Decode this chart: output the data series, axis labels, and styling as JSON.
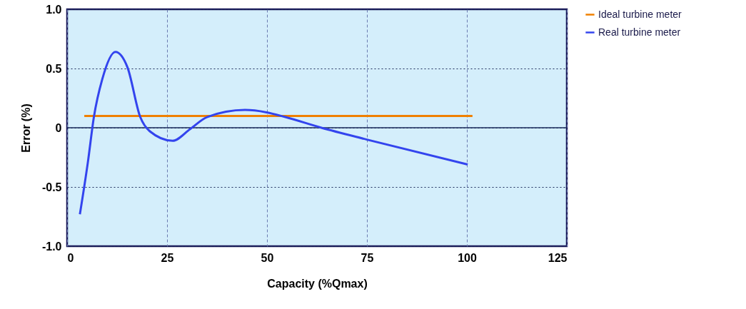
{
  "chart_data": {
    "type": "line",
    "xlabel": "Capacity (%Qmax)",
    "ylabel": "Error (%)",
    "xlim": [
      0,
      125
    ],
    "xticks": [
      0,
      25,
      50,
      75,
      100,
      125
    ],
    "ylim": [
      -1,
      1
    ],
    "yticks": [
      {
        "value": -1,
        "label": "-1.0"
      },
      -0.5,
      0,
      0.5,
      {
        "value": 1,
        "label": "1.0"
      }
    ],
    "grid": true,
    "legend": "right",
    "line_style": "solid",
    "marker": "none",
    "ref_lines": [
      {
        "axis": "y",
        "value": 0,
        "color": "#1a2a5a",
        "line_style": "solid"
      }
    ],
    "series": [
      {
        "name": "Ideal turbine meter",
        "color": "#f08000",
        "x": [
          4.3,
          101.4
        ],
        "values": [
          0.1,
          0.1
        ]
      },
      {
        "name": "Real turbine meter",
        "color": "#3344ee",
        "x": [
          3.2,
          5.2,
          6.7,
          8.8,
          12.1,
          15.1,
          18.3,
          20.7,
          26.4,
          30.8,
          35,
          44.5,
          49.9,
          54.6,
          63.6,
          75,
          100.2
        ],
        "values": [
          -0.73,
          -0.29,
          0.09,
          0.41,
          0.64,
          0.51,
          0.09,
          -0.03,
          -0.11,
          -0.01,
          0.09,
          0.15,
          0.13,
          0.09,
          0,
          -0.1,
          -0.31
        ]
      }
    ]
  }
}
